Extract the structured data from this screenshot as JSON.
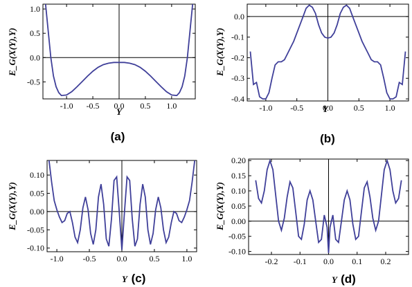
{
  "chart_data": [
    {
      "id": "a",
      "type": "line",
      "panel_label": "(a)",
      "xlabel": "Y",
      "ylabel": "E_G(X(Y),Y)",
      "xlim": [
        -1.45,
        1.45
      ],
      "ylim": [
        -0.85,
        1.1
      ],
      "xticks": [
        -1.0,
        -0.5,
        0.0,
        0.5,
        1.0
      ],
      "xtick_labels": [
        "-1.0",
        "-0.5",
        "0.0",
        "0.5",
        "1.0"
      ],
      "yticks": [
        -0.5,
        0.0,
        0.5,
        1.0
      ],
      "ytick_labels": [
        "-0.5",
        "0.0",
        "0.5",
        "1.0"
      ],
      "x": [
        -1.4,
        -1.35,
        -1.3,
        -1.25,
        -1.2,
        -1.15,
        -1.1,
        -1.0,
        -0.9,
        -0.8,
        -0.7,
        -0.6,
        -0.5,
        -0.4,
        -0.3,
        -0.2,
        -0.1,
        0.0,
        0.1,
        0.2,
        0.3,
        0.4,
        0.5,
        0.6,
        0.7,
        0.8,
        0.9,
        1.0,
        1.1,
        1.15,
        1.2,
        1.25,
        1.3,
        1.35,
        1.4
      ],
      "y": [
        1.1,
        0.55,
        0.0,
        -0.38,
        -0.6,
        -0.72,
        -0.78,
        -0.77,
        -0.7,
        -0.6,
        -0.49,
        -0.38,
        -0.28,
        -0.2,
        -0.145,
        -0.115,
        -0.1,
        -0.1,
        -0.1,
        -0.115,
        -0.145,
        -0.2,
        -0.28,
        -0.38,
        -0.49,
        -0.6,
        -0.7,
        -0.77,
        -0.78,
        -0.72,
        -0.6,
        -0.38,
        0.0,
        0.55,
        1.1
      ]
    },
    {
      "id": "b",
      "type": "line",
      "panel_label": "(b)",
      "xlabel": "Y",
      "ylabel": "E_G(X(Y),Y)",
      "xlim": [
        -1.3,
        1.3
      ],
      "ylim": [
        -0.41,
        0.06
      ],
      "xticks": [
        -1.0,
        -0.5,
        0.0,
        0.5,
        1.0
      ],
      "xtick_labels": [
        "-1.0",
        "-0.5",
        "0.0",
        "0.5",
        "1.0"
      ],
      "yticks": [
        -0.4,
        -0.3,
        -0.2,
        -0.1,
        0.0
      ],
      "ytick_labels": [
        "-0.4",
        "-0.3",
        "-0.2",
        "-0.1",
        "0.0"
      ],
      "x": [
        -1.25,
        -1.2,
        -1.15,
        -1.1,
        -1.05,
        -1.0,
        -0.95,
        -0.9,
        -0.85,
        -0.8,
        -0.75,
        -0.7,
        -0.65,
        -0.6,
        -0.55,
        -0.5,
        -0.45,
        -0.4,
        -0.35,
        -0.3,
        -0.25,
        -0.2,
        -0.15,
        -0.1,
        -0.05,
        0.0,
        0.05,
        0.1,
        0.15,
        0.2,
        0.25,
        0.3,
        0.35,
        0.4,
        0.45,
        0.5,
        0.55,
        0.6,
        0.65,
        0.7,
        0.75,
        0.8,
        0.85,
        0.9,
        0.95,
        1.0,
        1.05,
        1.1,
        1.15,
        1.2,
        1.25
      ],
      "y": [
        -0.17,
        -0.33,
        -0.32,
        -0.39,
        -0.4,
        -0.4,
        -0.37,
        -0.3,
        -0.235,
        -0.22,
        -0.22,
        -0.21,
        -0.18,
        -0.15,
        -0.12,
        -0.08,
        -0.04,
        0.0,
        0.04,
        0.055,
        0.045,
        0.015,
        -0.04,
        -0.08,
        -0.1,
        -0.105,
        -0.1,
        -0.08,
        -0.04,
        0.015,
        0.045,
        0.055,
        0.04,
        0.0,
        -0.04,
        -0.08,
        -0.12,
        -0.15,
        -0.18,
        -0.21,
        -0.22,
        -0.22,
        -0.235,
        -0.3,
        -0.37,
        -0.4,
        -0.4,
        -0.39,
        -0.32,
        -0.33,
        -0.17
      ]
    },
    {
      "id": "c",
      "type": "line",
      "panel_label": "(c)",
      "xlabel": "Y",
      "ylabel": "E_G(X(Y),Y)",
      "xlim": [
        -1.15,
        1.15
      ],
      "ylim": [
        -0.11,
        0.14
      ],
      "xticks": [
        -1.0,
        -0.5,
        0.0,
        0.5,
        1.0
      ],
      "xtick_labels": [
        "-1.0",
        "-0.5",
        "0.0",
        "0.5",
        "1.0"
      ],
      "yticks": [
        -0.1,
        -0.05,
        0.0,
        0.05,
        0.1
      ],
      "ytick_labels": [
        "-0.10",
        "-0.05",
        "0.00",
        "0.05",
        "0.10"
      ],
      "x": [
        -1.12,
        -1.08,
        -1.04,
        -1.0,
        -0.96,
        -0.92,
        -0.88,
        -0.84,
        -0.8,
        -0.76,
        -0.72,
        -0.68,
        -0.64,
        -0.6,
        -0.56,
        -0.52,
        -0.48,
        -0.44,
        -0.4,
        -0.36,
        -0.32,
        -0.28,
        -0.24,
        -0.2,
        -0.16,
        -0.12,
        -0.08,
        -0.04,
        0.0,
        0.04,
        0.08,
        0.12,
        0.16,
        0.2,
        0.24,
        0.28,
        0.32,
        0.36,
        0.4,
        0.44,
        0.48,
        0.52,
        0.56,
        0.6,
        0.64,
        0.68,
        0.72,
        0.76,
        0.8,
        0.84,
        0.88,
        0.92,
        0.96,
        1.0,
        1.04,
        1.08,
        1.12
      ],
      "y": [
        0.14,
        0.08,
        0.03,
        0.005,
        -0.015,
        -0.03,
        -0.025,
        -0.005,
        0.0,
        -0.03,
        -0.07,
        -0.085,
        -0.05,
        0.01,
        0.04,
        0.005,
        -0.06,
        -0.09,
        -0.05,
        0.04,
        0.075,
        0.02,
        -0.075,
        -0.095,
        -0.02,
        0.085,
        0.095,
        0.0,
        -0.105,
        0.0,
        0.095,
        0.085,
        -0.02,
        -0.095,
        -0.075,
        0.02,
        0.075,
        0.04,
        -0.05,
        -0.09,
        -0.06,
        0.005,
        0.04,
        0.01,
        -0.05,
        -0.085,
        -0.07,
        -0.03,
        0.0,
        -0.005,
        -0.025,
        -0.03,
        -0.015,
        0.005,
        0.03,
        0.08,
        0.14
      ]
    },
    {
      "id": "d",
      "type": "line",
      "panel_label": "(d)",
      "xlabel": "Y",
      "ylabel": "E_G(X(Y),Y)",
      "xlim": [
        -0.28,
        0.28
      ],
      "ylim": [
        -0.11,
        0.205
      ],
      "xticks": [
        -0.2,
        -0.1,
        0.0,
        0.1,
        0.2
      ],
      "xtick_labels": [
        "-0.2",
        "-0.1",
        "0.0",
        "0.1",
        "0.2"
      ],
      "yticks": [
        -0.1,
        -0.05,
        0.0,
        0.05,
        0.1,
        0.15,
        0.2
      ],
      "ytick_labels": [
        "-0.10",
        "-0.05",
        "0.00",
        "0.05",
        "0.10",
        "0.15",
        "0.20"
      ],
      "x": [
        -0.255,
        -0.245,
        -0.235,
        -0.225,
        -0.215,
        -0.205,
        -0.195,
        -0.185,
        -0.175,
        -0.165,
        -0.155,
        -0.145,
        -0.135,
        -0.125,
        -0.115,
        -0.105,
        -0.095,
        -0.085,
        -0.075,
        -0.065,
        -0.055,
        -0.045,
        -0.035,
        -0.025,
        -0.015,
        -0.005,
        0.0,
        0.005,
        0.015,
        0.025,
        0.035,
        0.045,
        0.055,
        0.065,
        0.075,
        0.085,
        0.095,
        0.105,
        0.115,
        0.125,
        0.135,
        0.145,
        0.155,
        0.165,
        0.175,
        0.185,
        0.195,
        0.205,
        0.215,
        0.225,
        0.235,
        0.245,
        0.255
      ],
      "y": [
        0.135,
        0.075,
        0.06,
        0.1,
        0.17,
        0.2,
        0.17,
        0.085,
        0.0,
        -0.03,
        0.01,
        0.08,
        0.13,
        0.11,
        0.03,
        -0.05,
        -0.06,
        -0.01,
        0.07,
        0.1,
        0.07,
        0.0,
        -0.07,
        -0.06,
        0.02,
        -0.02,
        -0.105,
        -0.02,
        0.02,
        -0.06,
        -0.07,
        0.0,
        0.07,
        0.1,
        0.07,
        -0.01,
        -0.06,
        -0.05,
        0.03,
        0.11,
        0.13,
        0.08,
        0.01,
        -0.03,
        0.0,
        0.085,
        0.17,
        0.2,
        0.17,
        0.1,
        0.06,
        0.075,
        0.135
      ]
    }
  ]
}
